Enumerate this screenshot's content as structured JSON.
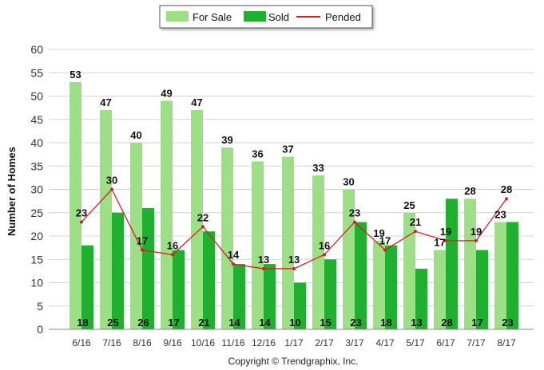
{
  "chart_data": {
    "type": "bar",
    "categories": [
      "6/16",
      "7/16",
      "8/16",
      "9/16",
      "10/16",
      "11/16",
      "12/16",
      "1/17",
      "2/17",
      "3/17",
      "4/17",
      "5/17",
      "6/17",
      "7/17",
      "8/17"
    ],
    "series": [
      {
        "name": "For Sale",
        "kind": "bar",
        "color": "#9ddf85",
        "values": [
          53,
          47,
          40,
          49,
          47,
          39,
          36,
          37,
          33,
          30,
          19,
          25,
          17,
          28,
          23
        ]
      },
      {
        "name": "Sold",
        "kind": "bar",
        "color": "#1fb02f",
        "values": [
          18,
          25,
          26,
          17,
          21,
          14,
          14,
          10,
          15,
          23,
          18,
          13,
          28,
          17,
          23
        ]
      },
      {
        "name": "Pended",
        "kind": "line",
        "color": "#d62020",
        "values": [
          23,
          30,
          17,
          16,
          22,
          14,
          13,
          13,
          16,
          23,
          17,
          21,
          19,
          19,
          28
        ]
      }
    ],
    "ylabel": "Number of Homes",
    "ylim": [
      0,
      60
    ],
    "yticks": [
      0,
      5,
      10,
      15,
      20,
      25,
      30,
      35,
      40,
      45,
      50,
      55,
      60
    ],
    "grid": true,
    "legend": "top-center"
  },
  "footer": {
    "copyright": "Copyright © Trendgraphix, Inc."
  }
}
